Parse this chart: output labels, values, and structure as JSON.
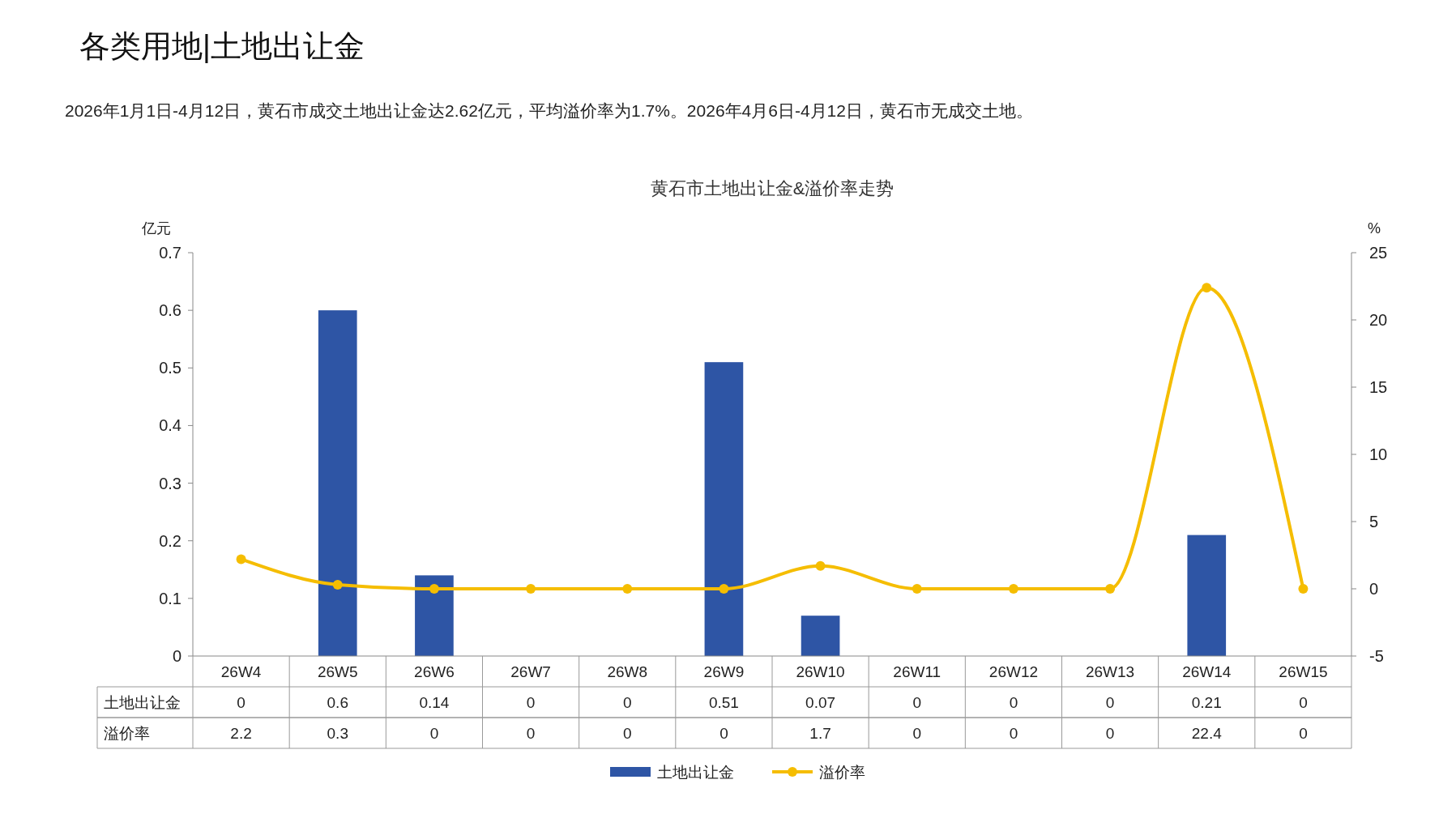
{
  "chart_data": {
    "type": "bar",
    "title": "各类用地|土地出让金",
    "subtitle": "黄石市土地出让金&溢价率走势",
    "annotations": [
      "2026年1月1日-4月12日，黄石市成交土地出让金达2.62亿元，平均溢价率为1.7%。2026年4月6日-4月12日，黄石市无成交土地。"
    ],
    "ylabel": "亿元",
    "y2label": "%",
    "categories": [
      "26W4",
      "26W5",
      "26W6",
      "26W7",
      "26W8",
      "26W9",
      "26W10",
      "26W11",
      "26W12",
      "26W13",
      "26W14",
      "26W15"
    ],
    "series": [
      {
        "name": "土地出让金",
        "color": "#2e55a5",
        "values": [
          0,
          0.6,
          0.14,
          0,
          0,
          0.51,
          0.07,
          0,
          0,
          0,
          0.21,
          0
        ]
      },
      {
        "name": "溢价率",
        "type": "line",
        "axis": "y2",
        "color": "#f5bd00",
        "values": [
          2.2,
          0.3,
          0,
          0,
          0,
          0,
          1.7,
          0,
          0,
          0,
          22.4,
          0
        ]
      }
    ],
    "ylim": [
      0,
      0.7
    ],
    "yticks": [
      0,
      0.1,
      0.2,
      0.3,
      0.4,
      0.5,
      0.6,
      0.7
    ],
    "y2lim": [
      -5,
      25
    ],
    "y2ticks": [
      -5,
      0,
      5,
      10,
      15,
      20,
      25
    ],
    "data_labels": true,
    "legend": "bottom",
    "marker": "circle",
    "grid": false
  }
}
